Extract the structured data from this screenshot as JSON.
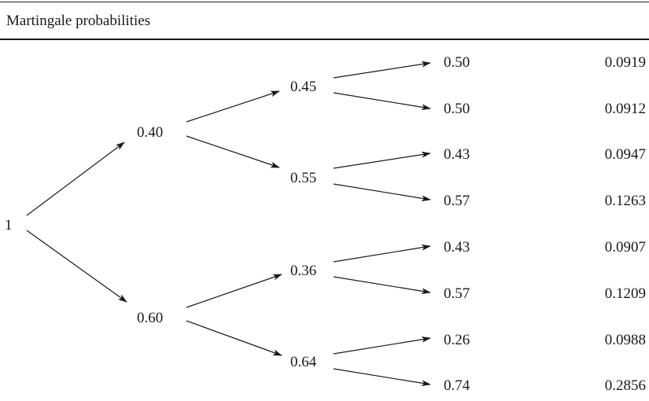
{
  "header": {
    "title": "Martingale probabilities"
  },
  "tree": {
    "root": "1",
    "level1": [
      "0.40",
      "0.60"
    ],
    "level2": [
      "0.45",
      "0.55",
      "0.36",
      "0.64"
    ],
    "level3": [
      "0.50",
      "0.50",
      "0.43",
      "0.57",
      "0.43",
      "0.57",
      "0.26",
      "0.74"
    ],
    "leaf_values": [
      "0.0919",
      "0.0912",
      "0.0947",
      "0.1263",
      "0.0907",
      "0.1209",
      "0.0988",
      "0.2856"
    ]
  }
}
